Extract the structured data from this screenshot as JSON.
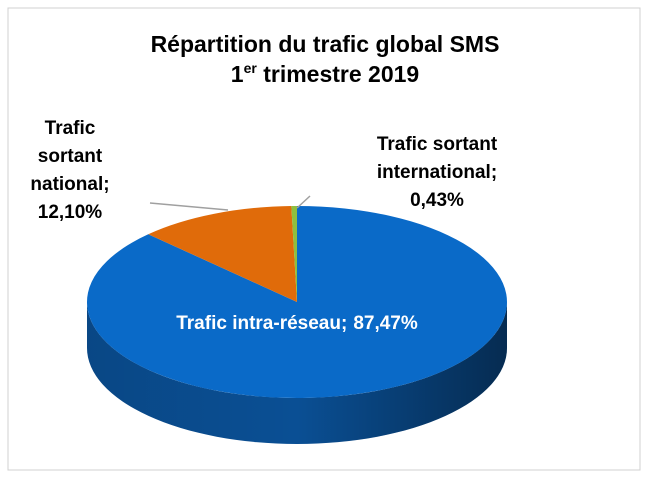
{
  "chart_data": {
    "type": "pie3d",
    "title": "Répartition du trafic global SMS",
    "subtitle_parts": [
      "1",
      "er",
      " trimestre 2019"
    ],
    "categories": [
      [
        "Trafic intra-réseau;"
      ],
      [
        "Trafic",
        "sortant",
        "national;"
      ],
      [
        "Trafic sortant",
        "international;"
      ]
    ],
    "values": [
      87.47,
      12.1,
      0.43
    ],
    "value_labels": [
      "87,47%",
      "12,10%",
      "0,43%"
    ],
    "colors": [
      "#0a6ac8",
      "#e06b0a",
      "#8fbf3f"
    ],
    "side_colors": [
      "#0a4f94",
      "#a44e07",
      "#5e8a26"
    ]
  }
}
